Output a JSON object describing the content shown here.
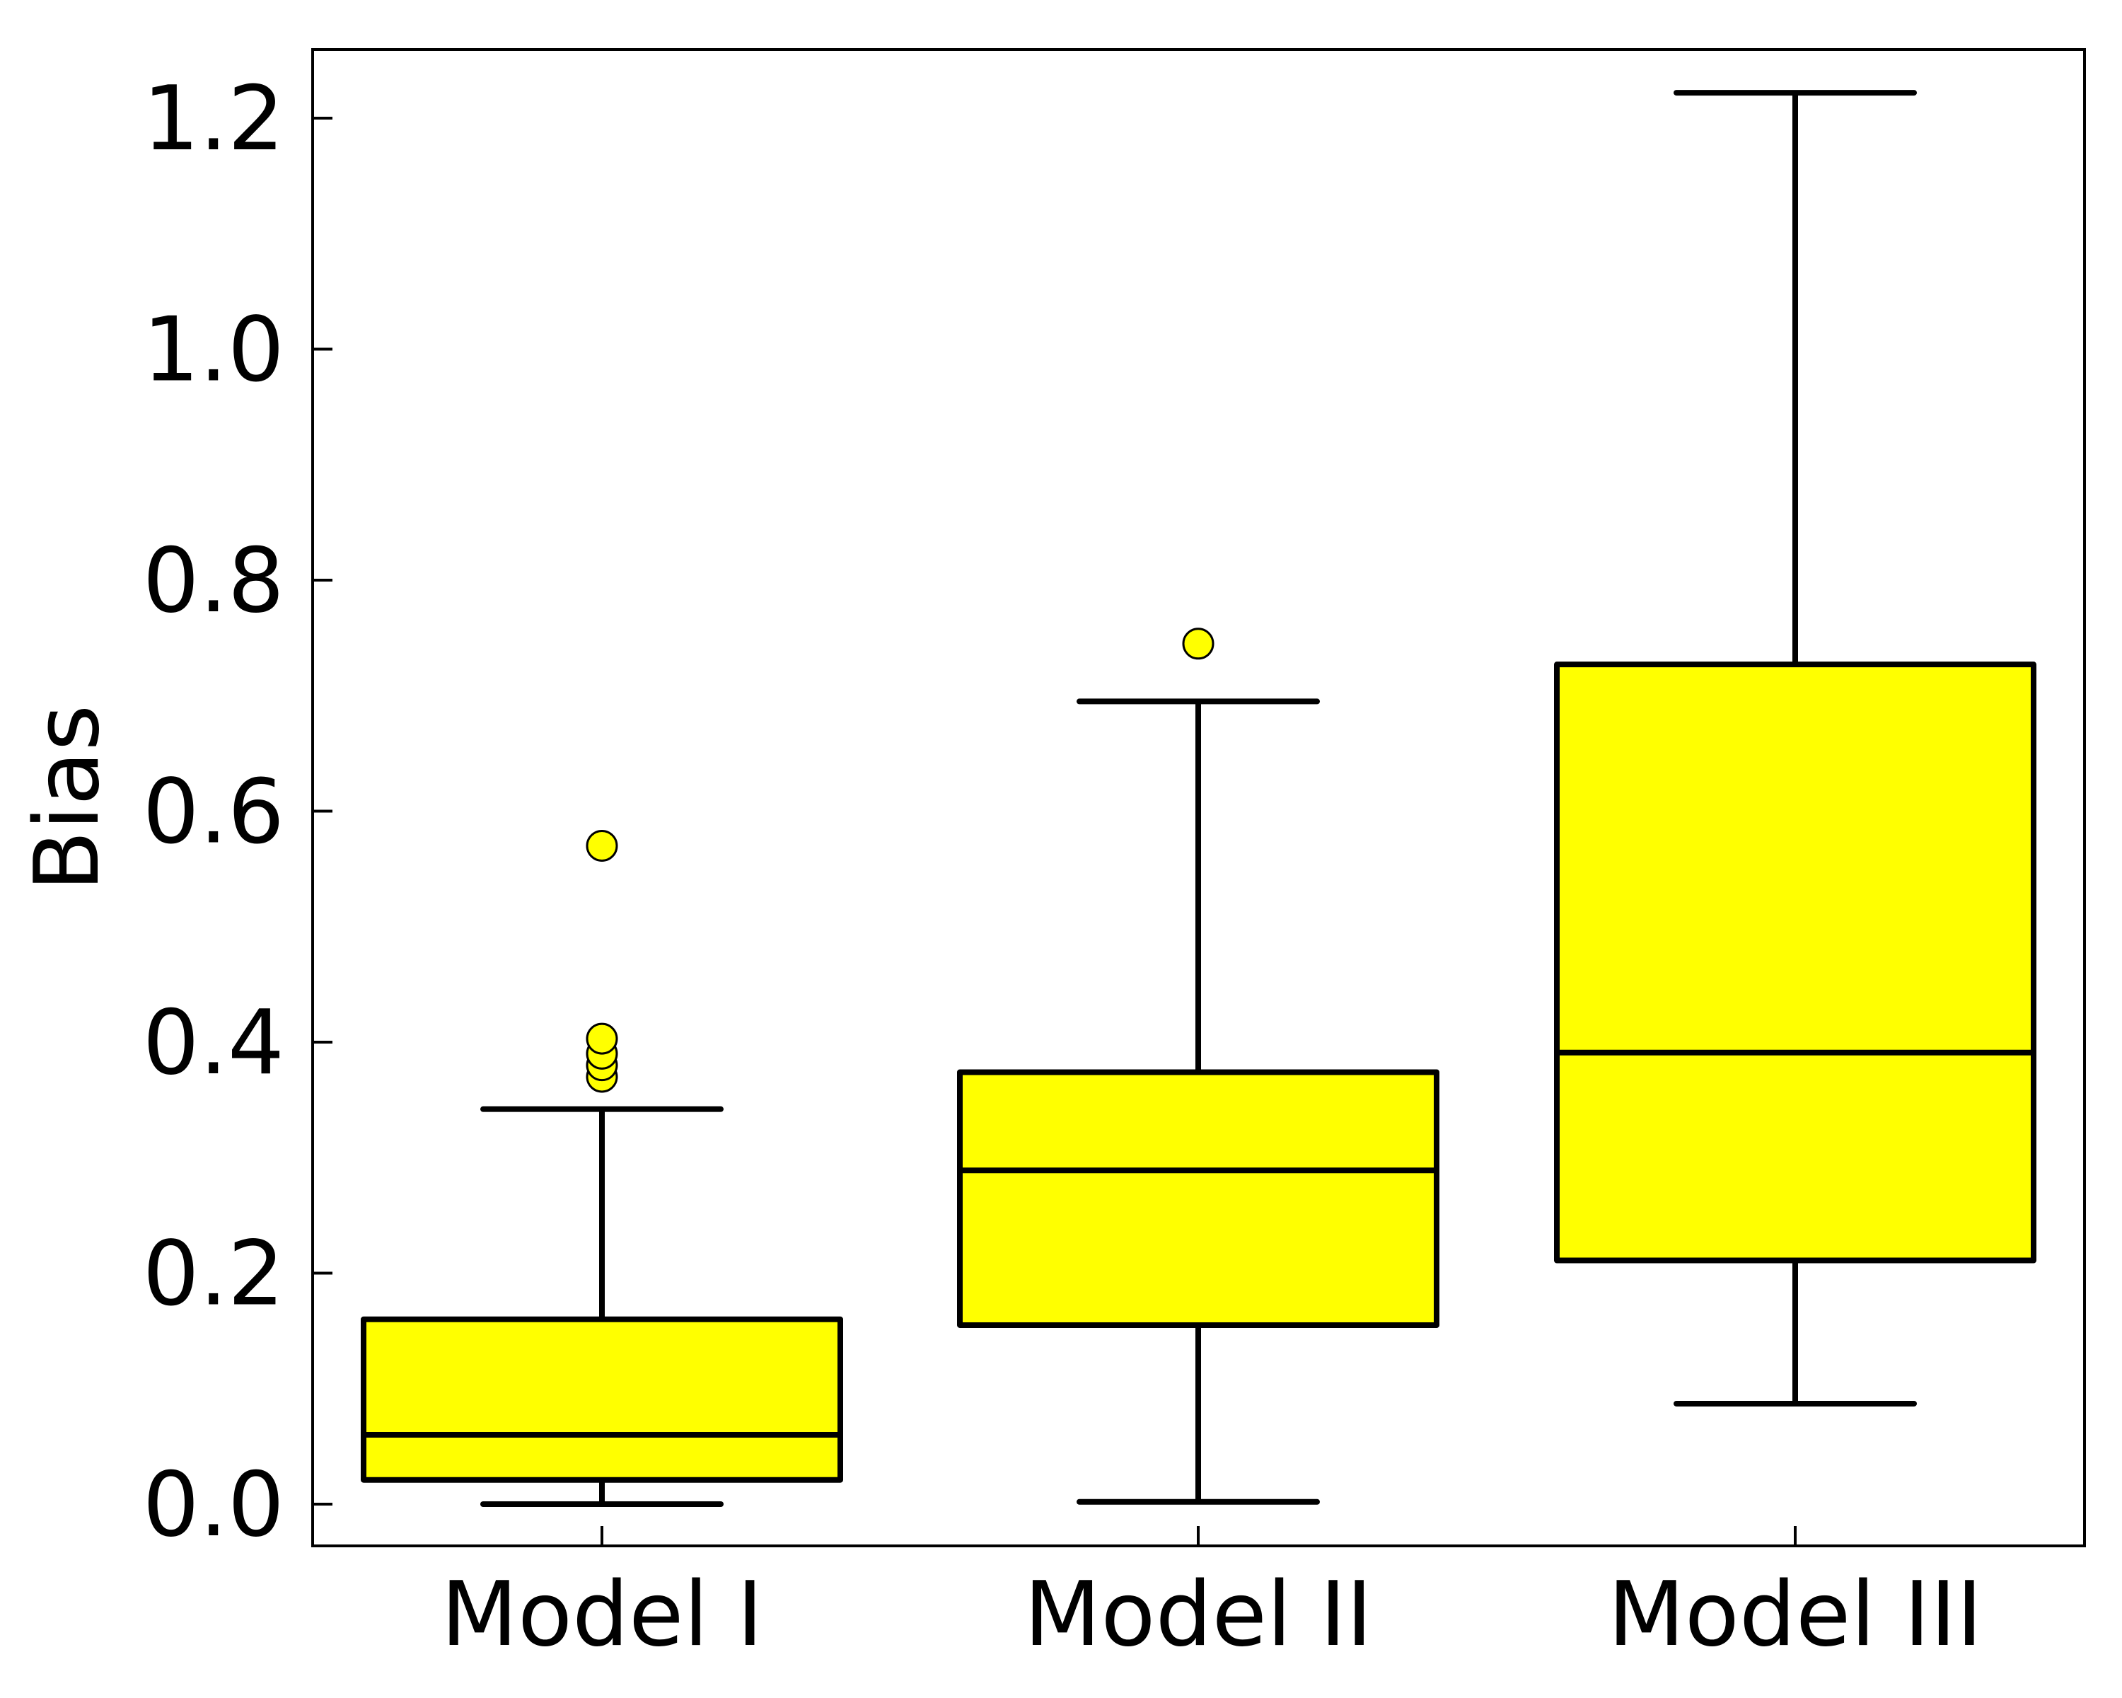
{
  "chart_data": {
    "type": "boxplot",
    "title": "",
    "xlabel": "",
    "ylabel": "Bias",
    "ylim": [
      -0.035,
      1.26
    ],
    "yticks": [
      0.0,
      0.2,
      0.4,
      0.6,
      0.8,
      1.0,
      1.2
    ],
    "ytick_labels": [
      "0.0",
      "0.2",
      "0.4",
      "0.6",
      "0.8",
      "1.0",
      "1.2"
    ],
    "grid": false,
    "box_color": "#ffff00",
    "line_color": "#000000",
    "categories": [
      "Model I",
      "Model II",
      "Model III"
    ],
    "boxes": [
      {
        "name": "Model I",
        "whisker_low": 0.0,
        "q1": 0.021,
        "median": 0.06,
        "q3": 0.16,
        "whisker_high": 0.342,
        "outliers": [
          0.37,
          0.38,
          0.39,
          0.403,
          0.57
        ]
      },
      {
        "name": "Model II",
        "whisker_low": 0.002,
        "q1": 0.155,
        "median": 0.289,
        "q3": 0.374,
        "whisker_high": 0.695,
        "outliers": [
          0.745
        ]
      },
      {
        "name": "Model III",
        "whisker_low": 0.087,
        "q1": 0.211,
        "median": 0.391,
        "q3": 0.727,
        "whisker_high": 1.222,
        "outliers": []
      }
    ]
  }
}
